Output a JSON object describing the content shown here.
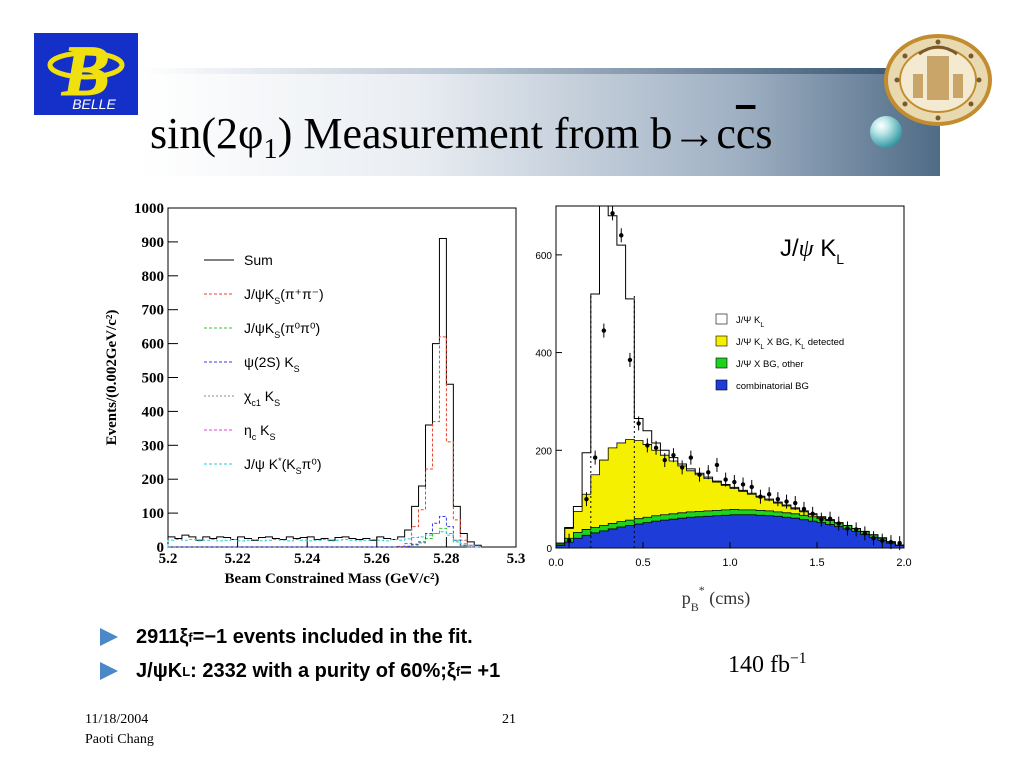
{
  "title": {
    "prefix": "sin(2",
    "phi": "φ",
    "sub": "1",
    "rest": ") Measurement from b",
    "arrow": "→",
    "c1": "c",
    "cbar": "c",
    "s": "s"
  },
  "logo_belle": {
    "text": "BELLE",
    "letter": "B"
  },
  "bullets": [
    {
      "parts": [
        "2911 ",
        "ξ",
        "f",
        " = ",
        "−",
        "1 events included in the fit."
      ]
    },
    {
      "parts": [
        "J/",
        "ψ",
        " K",
        "L",
        ": 2332 with a purity of 60%; ",
        "ξ",
        "f",
        " = +1"
      ]
    }
  ],
  "lumi": {
    "value": "140 fb",
    "exp": "−1"
  },
  "footer": {
    "date": "11/18/2004",
    "author": "Paoti Chang",
    "page": "21"
  },
  "colors": {
    "bullet": "#4a88c8",
    "yellow": "#f5f000",
    "green": "#1ed21e",
    "blue": "#1e3cd8"
  },
  "chart_data": [
    {
      "type": "line",
      "xlabel": "Beam Constrained Mass (GeV/c²)",
      "ylabel": "Events/(0.002GeV/c²)",
      "xlim": [
        5.2,
        5.3
      ],
      "ylim": [
        0,
        1000
      ],
      "xticks": [
        "5.2",
        "5.22",
        "5.24",
        "5.26",
        "5.28",
        "5.3"
      ],
      "yticks": [
        "0",
        "100",
        "200",
        "300",
        "400",
        "500",
        "600",
        "700",
        "800",
        "900",
        "1000"
      ],
      "legend": [
        {
          "name": "Sum",
          "label_main": "Sum",
          "label_sub": "",
          "label_sup": "",
          "label_tail": "",
          "color": "#000000",
          "dash": ""
        },
        {
          "name": "J/ψK_S(π+π-)",
          "label_main": "J/ψK",
          "label_sub": "S",
          "label_sup": "",
          "label_tail": "(π⁺π⁻)",
          "color": "#e8452d",
          "dash": "3,2"
        },
        {
          "name": "J/ψK_S(π0π0)",
          "label_main": "J/ψK",
          "label_sub": "S",
          "label_sup": "",
          "label_tail": "(π⁰π⁰)",
          "color": "#2dc82d",
          "dash": "3,2"
        },
        {
          "name": "ψ(2S) K_S",
          "label_main": "ψ(2S) K",
          "label_sub": "S",
          "label_sup": "",
          "label_tail": "",
          "color": "#3b3bdc",
          "dash": "3,2"
        },
        {
          "name": "χc1 K_S",
          "label_main": "χ",
          "label_sub": "c1",
          "label_sup": "",
          "label_tail": " K",
          "label_sub2": "S",
          "color": "#888888",
          "dash": "2,2"
        },
        {
          "name": "ηc K_S",
          "label_main": "η",
          "label_sub": "c",
          "label_sup": "",
          "label_tail": " K",
          "label_sub2": "S",
          "color": "#e040d8",
          "dash": "3,2"
        },
        {
          "name": "J/ψ K*(K_Sπ0)",
          "label_main": "J/ψ K",
          "label_sub": "",
          "label_sup": "*",
          "label_tail": "(K",
          "label_sub2": "S",
          "label_tail2": "π⁰)",
          "color": "#2cc8d8",
          "dash": "3,2"
        }
      ],
      "x_edges": [
        5.2,
        5.202,
        5.204,
        5.206,
        5.208,
        5.21,
        5.212,
        5.214,
        5.216,
        5.218,
        5.22,
        5.222,
        5.224,
        5.226,
        5.228,
        5.23,
        5.232,
        5.234,
        5.236,
        5.238,
        5.24,
        5.242,
        5.244,
        5.246,
        5.248,
        5.25,
        5.252,
        5.254,
        5.256,
        5.258,
        5.26,
        5.262,
        5.264,
        5.266,
        5.268,
        5.27,
        5.272,
        5.274,
        5.276,
        5.278,
        5.28,
        5.282,
        5.284,
        5.286,
        5.288,
        5.29
      ],
      "series": [
        {
          "name": "Sum",
          "values": [
            30,
            25,
            35,
            30,
            20,
            30,
            25,
            30,
            28,
            22,
            30,
            25,
            20,
            28,
            30,
            25,
            22,
            30,
            25,
            28,
            30,
            22,
            25,
            20,
            28,
            30,
            25,
            22,
            25,
            20,
            30,
            25,
            22,
            30,
            50,
            120,
            180,
            360,
            600,
            910,
            480,
            120,
            40,
            15,
            5
          ]
        },
        {
          "name": "J/ψK_S(π+π-)",
          "values": [
            0,
            0,
            0,
            0,
            0,
            0,
            0,
            0,
            0,
            0,
            0,
            0,
            0,
            0,
            0,
            0,
            0,
            0,
            0,
            0,
            0,
            0,
            0,
            0,
            0,
            0,
            0,
            0,
            0,
            0,
            0,
            0,
            0,
            2,
            10,
            60,
            110,
            230,
            370,
            620,
            310,
            80,
            20,
            5,
            0
          ]
        },
        {
          "name": "J/ψK_S(π0π0)",
          "values": [
            0,
            0,
            0,
            0,
            0,
            0,
            0,
            0,
            0,
            0,
            0,
            0,
            0,
            0,
            0,
            0,
            0,
            0,
            0,
            0,
            0,
            0,
            0,
            0,
            0,
            0,
            0,
            0,
            0,
            0,
            0,
            0,
            0,
            0,
            2,
            6,
            12,
            25,
            40,
            55,
            40,
            15,
            5,
            0,
            0
          ]
        },
        {
          "name": "ψ(2S) K_S",
          "values": [
            0,
            0,
            0,
            0,
            0,
            0,
            0,
            0,
            0,
            0,
            0,
            0,
            0,
            0,
            0,
            0,
            0,
            0,
            0,
            0,
            0,
            0,
            0,
            0,
            0,
            0,
            0,
            0,
            0,
            0,
            0,
            0,
            0,
            0,
            2,
            8,
            15,
            40,
            70,
            90,
            60,
            20,
            5,
            0,
            0
          ]
        },
        {
          "name": "J/ψ K*(K_Sπ0)",
          "values": [
            20,
            22,
            20,
            22,
            18,
            20,
            22,
            18,
            20,
            22,
            18,
            20,
            22,
            18,
            20,
            22,
            20,
            18,
            22,
            20,
            18,
            20,
            22,
            18,
            20,
            22,
            20,
            18,
            20,
            22,
            20,
            18,
            22,
            20,
            24,
            28,
            30,
            35,
            40,
            45,
            35,
            20,
            10,
            5,
            0
          ]
        }
      ]
    },
    {
      "type": "area",
      "title_main": "J/",
      "title_psi": "ψ",
      "title_k": " K",
      "title_sub": "L",
      "xlabel_main": "p",
      "xlabel_sub": "B",
      "xlabel_sup": "*",
      "xlabel_tail": " (cms)",
      "xlim": [
        0.0,
        2.0
      ],
      "ylim": [
        0,
        700
      ],
      "xticks": [
        "0.0",
        "0.5",
        "1.0",
        "1.5",
        "2.0"
      ],
      "yticks": [
        "0",
        "200",
        "400",
        "600"
      ],
      "legend": [
        {
          "name": "J/Ψ K_L",
          "main": "J/Ψ K",
          "sub": "L",
          "tail": "",
          "color": "#ffffff"
        },
        {
          "name": "J/Ψ K_L X BG, K_L detected",
          "main": "J/Ψ K",
          "sub": "L",
          "tail": " X BG, K",
          "sub2": "L",
          "tail2": " detected",
          "color": "#f5f000"
        },
        {
          "name": "J/Ψ X BG, other",
          "main": "J/Ψ X BG, other",
          "sub": "",
          "tail": "",
          "color": "#1ed21e"
        },
        {
          "name": "combinatorial BG",
          "main": "combinatorial BG",
          "sub": "",
          "tail": "",
          "color": "#1e3cd8"
        }
      ],
      "x_edges": [
        0.0,
        0.05,
        0.1,
        0.15,
        0.2,
        0.25,
        0.3,
        0.35,
        0.4,
        0.45,
        0.5,
        0.55,
        0.6,
        0.65,
        0.7,
        0.75,
        0.8,
        0.85,
        0.9,
        0.95,
        1.0,
        1.05,
        1.1,
        1.15,
        1.2,
        1.25,
        1.3,
        1.35,
        1.4,
        1.45,
        1.5,
        1.55,
        1.6,
        1.65,
        1.7,
        1.75,
        1.8,
        1.85,
        1.9,
        1.95,
        2.0
      ],
      "series": [
        {
          "name": "combinatorial BG",
          "values": [
            5,
            12,
            20,
            26,
            31,
            35,
            39,
            43,
            46,
            49,
            52,
            55,
            57,
            59,
            61,
            63,
            64,
            65,
            66,
            67,
            68,
            68,
            68,
            67,
            66,
            65,
            63,
            61,
            58,
            55,
            52,
            48,
            44,
            39,
            34,
            28,
            22,
            16,
            10,
            5
          ]
        },
        {
          "name": "J/Ψ X BG, other",
          "values": [
            8,
            20,
            32,
            38,
            42,
            46,
            50,
            54,
            57,
            60,
            63,
            66,
            68,
            70,
            72,
            74,
            75,
            76,
            77,
            78,
            79,
            78,
            78,
            77,
            76,
            74,
            72,
            70,
            67,
            64,
            60,
            56,
            51,
            46,
            40,
            34,
            27,
            20,
            12,
            6
          ]
        },
        {
          "name": "J/Ψ K_L X BG, K_L detected",
          "values": [
            10,
            40,
            75,
            110,
            150,
            180,
            205,
            215,
            222,
            220,
            212,
            200,
            190,
            178,
            168,
            158,
            150,
            142,
            135,
            128,
            122,
            116,
            110,
            104,
            98,
            92,
            86,
            80,
            74,
            68,
            62,
            56,
            50,
            44,
            38,
            32,
            26,
            20,
            12,
            6
          ]
        },
        {
          "name": "J/Ψ K_L",
          "values": [
            10,
            42,
            85,
            195,
            520,
            700,
            680,
            620,
            510,
            265,
            240,
            215,
            200,
            185,
            172,
            162,
            153,
            145,
            137,
            130,
            124,
            118,
            112,
            106,
            100,
            94,
            88,
            82,
            76,
            70,
            64,
            58,
            52,
            46,
            40,
            34,
            27,
            21,
            13,
            6
          ]
        }
      ],
      "points": [
        [
          0.075,
          15
        ],
        [
          0.175,
          100
        ],
        [
          0.225,
          185
        ],
        [
          0.275,
          445
        ],
        [
          0.325,
          685
        ],
        [
          0.375,
          640
        ],
        [
          0.425,
          385
        ],
        [
          0.475,
          255
        ],
        [
          0.525,
          210
        ],
        [
          0.575,
          205
        ],
        [
          0.625,
          180
        ],
        [
          0.675,
          190
        ],
        [
          0.725,
          165
        ],
        [
          0.775,
          185
        ],
        [
          0.825,
          150
        ],
        [
          0.875,
          155
        ],
        [
          0.925,
          170
        ],
        [
          0.975,
          140
        ],
        [
          1.025,
          135
        ],
        [
          1.075,
          130
        ],
        [
          1.125,
          125
        ],
        [
          1.175,
          105
        ],
        [
          1.225,
          110
        ],
        [
          1.275,
          100
        ],
        [
          1.325,
          95
        ],
        [
          1.375,
          92
        ],
        [
          1.425,
          80
        ],
        [
          1.475,
          70
        ],
        [
          1.525,
          58
        ],
        [
          1.575,
          60
        ],
        [
          1.625,
          50
        ],
        [
          1.675,
          40
        ],
        [
          1.725,
          38
        ],
        [
          1.775,
          30
        ],
        [
          1.825,
          20
        ],
        [
          1.875,
          15
        ],
        [
          1.925,
          12
        ],
        [
          1.975,
          10
        ]
      ],
      "cut_lines": [
        0.2,
        0.45
      ]
    }
  ]
}
